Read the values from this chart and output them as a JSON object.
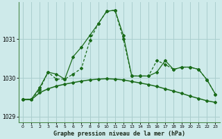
{
  "background_color": "#ceeaea",
  "grid_color": "#aacece",
  "line_color": "#1a6b1a",
  "border_color": "#4a8a4a",
  "title": "Graphe pression niveau de la mer (hPa)",
  "xlim": [
    -0.5,
    23.5
  ],
  "ylim": [
    1028.85,
    1031.95
  ],
  "yticks": [
    1029,
    1030,
    1031
  ],
  "xticks": [
    0,
    1,
    2,
    3,
    4,
    5,
    6,
    7,
    8,
    9,
    10,
    11,
    12,
    13,
    14,
    15,
    16,
    17,
    18,
    19,
    20,
    21,
    22,
    23
  ],
  "series1": [
    1029.45,
    1029.45,
    1029.75,
    1030.15,
    1030.1,
    1029.97,
    1030.55,
    1030.8,
    1031.1,
    1031.4,
    1031.72,
    1031.75,
    1031.1,
    1030.05,
    1030.05,
    1030.05,
    1030.15,
    1030.45,
    1030.22,
    1030.28,
    1030.28,
    1030.22,
    1029.95,
    1029.58
  ],
  "series2": [
    1029.45,
    1029.45,
    1029.7,
    1030.15,
    1029.97,
    1029.97,
    1030.1,
    1030.25,
    1030.97,
    1031.4,
    1031.72,
    1031.75,
    1031.0,
    1030.05,
    1030.05,
    1030.05,
    1030.45,
    1030.35,
    1030.22,
    1030.28,
    1030.28,
    1030.22,
    1029.95,
    1029.58
  ],
  "series3": [
    1029.44,
    1029.44,
    1029.62,
    1029.72,
    1029.79,
    1029.84,
    1029.88,
    1029.92,
    1029.95,
    1029.97,
    1029.98,
    1029.97,
    1029.95,
    1029.91,
    1029.87,
    1029.83,
    1029.78,
    1029.72,
    1029.66,
    1029.6,
    1029.53,
    1029.47,
    1029.41,
    1029.37
  ]
}
